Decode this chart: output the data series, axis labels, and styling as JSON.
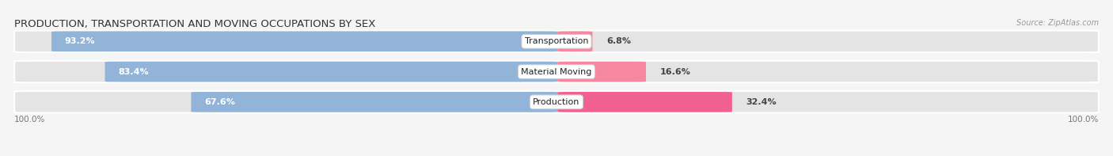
{
  "title": "PRODUCTION, TRANSPORTATION AND MOVING OCCUPATIONS BY SEX",
  "source": "Source: ZipAtlas.com",
  "categories": [
    "Transportation",
    "Material Moving",
    "Production"
  ],
  "male_pct": [
    93.2,
    83.4,
    67.6
  ],
  "female_pct": [
    6.8,
    16.6,
    32.4
  ],
  "male_color": "#92b4d9",
  "female_color": "#f687a0",
  "female_color_prod": "#f06090",
  "row_bg_color": "#e4e4e4",
  "title_fontsize": 9.5,
  "label_fontsize": 8,
  "pct_fontsize": 8,
  "tick_fontsize": 7.5,
  "legend_fontsize": 8,
  "source_fontsize": 7,
  "axis_label_left": "100.0%",
  "axis_label_right": "100.0%",
  "fig_bg": "#f5f5f5"
}
